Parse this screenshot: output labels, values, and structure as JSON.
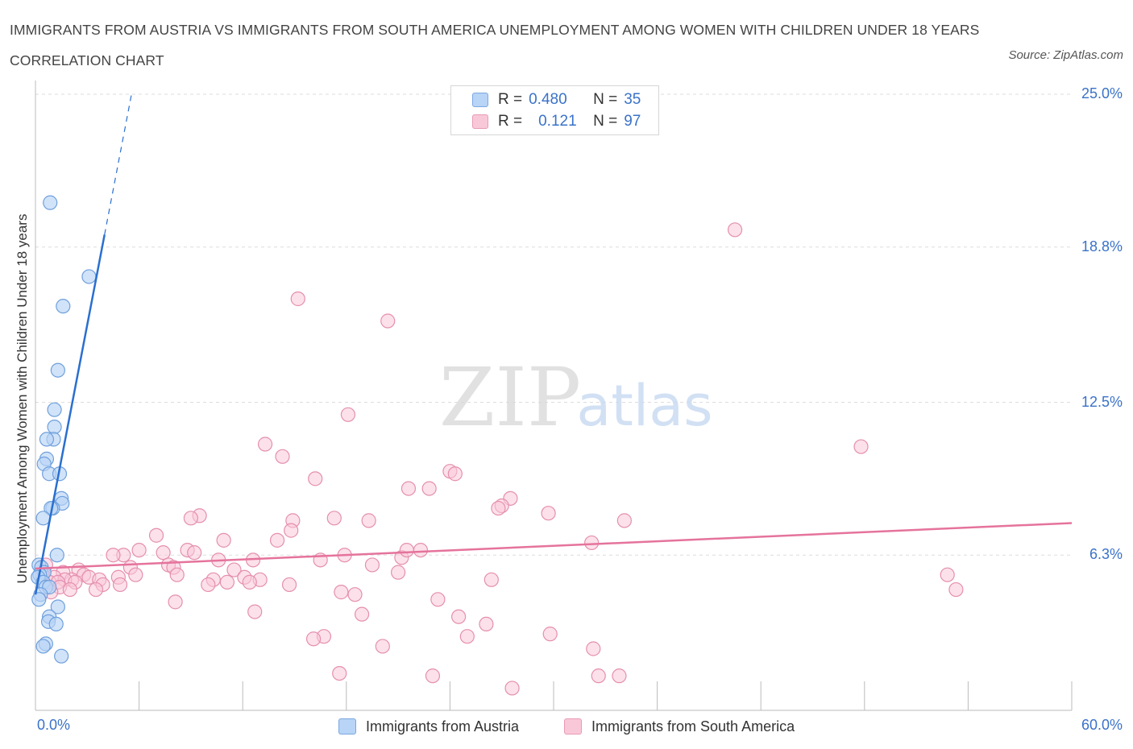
{
  "title": "IMMIGRANTS FROM AUSTRIA VS IMMIGRANTS FROM SOUTH AMERICA UNEMPLOYMENT AMONG WOMEN WITH CHILDREN UNDER 18 YEARS CORRELATION CHART",
  "source": "Source: ZipAtlas.com",
  "watermark": {
    "zip": "ZIP",
    "atlas": "atlas"
  },
  "legend": {
    "austria": {
      "r_label": "R =",
      "r_value": "0.480",
      "n_label": "N =",
      "n_value": "35"
    },
    "south_america": {
      "r_label": "R =",
      "r_value": "0.121",
      "n_label": "N =",
      "n_value": "97"
    }
  },
  "bottom_legend": {
    "austria": "Immigrants from Austria",
    "south_america": "Immigrants from South America"
  },
  "colors": {
    "blue_fill": "#b8d4f6",
    "blue_stroke": "#6fa0dc",
    "blue_line": "#2a6fd0",
    "pink_fill": "#f9c8d8",
    "pink_stroke": "#e58fae",
    "pink_line": "#e5739c",
    "tick_text": "#3a72c8",
    "grid": "#dddddd"
  },
  "chart_data": {
    "type": "scatter",
    "title": "IMMIGRANTS FROM AUSTRIA VS IMMIGRANTS FROM SOUTH AMERICA UNEMPLOYMENT AMONG WOMEN WITH CHILDREN UNDER 18 YEARS CORRELATION CHART",
    "xlabel": "",
    "ylabel": "Unemployment Among Women with Children Under 18 years",
    "xlim": [
      0,
      60
    ],
    "ylim": [
      0,
      25.0
    ],
    "x_tick_labels": [
      "0.0%",
      "60.0%"
    ],
    "y_ticks": [
      6.3,
      12.5,
      18.8,
      25.0
    ],
    "y_tick_labels": [
      "6.3%",
      "12.5%",
      "18.8%",
      "25.0%"
    ],
    "grid": true,
    "legend_position": "top-center",
    "series": [
      {
        "name": "Immigrants from Austria",
        "R": 0.48,
        "N": 35,
        "trend": {
          "x0": 0.0,
          "y0": 4.7,
          "x1": 4.0,
          "y1": 19.3,
          "dash_to_y": 25.0
        },
        "points": [
          [
            0.85,
            20.6
          ],
          [
            3.1,
            17.6
          ],
          [
            1.6,
            16.4
          ],
          [
            1.3,
            13.8
          ],
          [
            1.1,
            12.2
          ],
          [
            1.1,
            11.5
          ],
          [
            1.05,
            11.0
          ],
          [
            0.65,
            11.0
          ],
          [
            0.65,
            10.2
          ],
          [
            0.5,
            10.0
          ],
          [
            0.8,
            9.6
          ],
          [
            1.4,
            9.6
          ],
          [
            1.5,
            8.6
          ],
          [
            1.55,
            8.4
          ],
          [
            1.0,
            8.2
          ],
          [
            0.9,
            8.2
          ],
          [
            0.45,
            7.8
          ],
          [
            1.25,
            6.3
          ],
          [
            0.2,
            5.9
          ],
          [
            0.35,
            5.8
          ],
          [
            0.5,
            5.6
          ],
          [
            0.25,
            5.5
          ],
          [
            0.15,
            5.4
          ],
          [
            0.45,
            5.2
          ],
          [
            0.6,
            5.0
          ],
          [
            0.8,
            5.0
          ],
          [
            0.3,
            4.7
          ],
          [
            0.2,
            4.5
          ],
          [
            1.3,
            4.2
          ],
          [
            0.8,
            3.8
          ],
          [
            0.75,
            3.6
          ],
          [
            1.2,
            3.5
          ],
          [
            0.6,
            2.7
          ],
          [
            0.45,
            2.6
          ],
          [
            1.5,
            2.2
          ]
        ]
      },
      {
        "name": "Immigrants from South America",
        "R": 0.121,
        "N": 97,
        "trend": {
          "x0": 0.0,
          "y0": 5.75,
          "x1": 60.0,
          "y1": 7.6
        },
        "points": [
          [
            40.5,
            19.5
          ],
          [
            15.2,
            16.7
          ],
          [
            20.4,
            15.8
          ],
          [
            18.1,
            12.0
          ],
          [
            47.8,
            10.7
          ],
          [
            13.3,
            10.8
          ],
          [
            14.3,
            10.3
          ],
          [
            16.2,
            9.4
          ],
          [
            24.0,
            9.7
          ],
          [
            24.3,
            9.6
          ],
          [
            21.6,
            9.0
          ],
          [
            22.8,
            9.0
          ],
          [
            27.5,
            8.6
          ],
          [
            27.0,
            8.3
          ],
          [
            26.8,
            8.2
          ],
          [
            29.7,
            8.0
          ],
          [
            9.5,
            7.9
          ],
          [
            9.0,
            7.8
          ],
          [
            17.3,
            7.8
          ],
          [
            19.3,
            7.7
          ],
          [
            34.1,
            7.7
          ],
          [
            14.9,
            7.7
          ],
          [
            14.8,
            7.3
          ],
          [
            7.0,
            7.1
          ],
          [
            14.0,
            6.9
          ],
          [
            10.9,
            6.9
          ],
          [
            32.2,
            6.8
          ],
          [
            6.0,
            6.5
          ],
          [
            8.8,
            6.5
          ],
          [
            7.4,
            6.4
          ],
          [
            9.2,
            6.4
          ],
          [
            5.1,
            6.3
          ],
          [
            4.5,
            6.3
          ],
          [
            17.9,
            6.3
          ],
          [
            10.6,
            6.1
          ],
          [
            16.5,
            6.1
          ],
          [
            12.6,
            6.1
          ],
          [
            21.2,
            6.2
          ],
          [
            21.5,
            6.5
          ],
          [
            22.3,
            6.5
          ],
          [
            7.7,
            5.9
          ],
          [
            8.0,
            5.8
          ],
          [
            5.5,
            5.8
          ],
          [
            19.5,
            5.9
          ],
          [
            11.5,
            5.7
          ],
          [
            2.5,
            5.7
          ],
          [
            1.6,
            5.6
          ],
          [
            2.8,
            5.5
          ],
          [
            8.2,
            5.5
          ],
          [
            5.8,
            5.5
          ],
          [
            3.1,
            5.4
          ],
          [
            12.1,
            5.4
          ],
          [
            4.8,
            5.4
          ],
          [
            13.0,
            5.3
          ],
          [
            10.3,
            5.3
          ],
          [
            3.7,
            5.3
          ],
          [
            11.1,
            5.2
          ],
          [
            21.0,
            5.6
          ],
          [
            1.1,
            5.4
          ],
          [
            2.1,
            5.3
          ],
          [
            1.7,
            5.3
          ],
          [
            0.8,
            5.2
          ],
          [
            1.3,
            5.2
          ],
          [
            2.3,
            5.2
          ],
          [
            3.9,
            5.1
          ],
          [
            4.9,
            5.1
          ],
          [
            10.0,
            5.1
          ],
          [
            12.4,
            5.2
          ],
          [
            14.7,
            5.1
          ],
          [
            1.4,
            5.0
          ],
          [
            3.5,
            4.9
          ],
          [
            2.0,
            4.9
          ],
          [
            0.9,
            4.8
          ],
          [
            17.7,
            4.8
          ],
          [
            18.5,
            4.7
          ],
          [
            26.4,
            5.3
          ],
          [
            52.8,
            5.5
          ],
          [
            53.3,
            4.9
          ],
          [
            8.1,
            4.4
          ],
          [
            23.3,
            4.5
          ],
          [
            12.7,
            4.0
          ],
          [
            18.9,
            3.9
          ],
          [
            24.5,
            3.8
          ],
          [
            26.1,
            3.5
          ],
          [
            20.1,
            2.6
          ],
          [
            29.8,
            3.1
          ],
          [
            25.0,
            3.0
          ],
          [
            16.7,
            3.0
          ],
          [
            16.1,
            2.9
          ],
          [
            32.3,
            2.5
          ],
          [
            17.6,
            1.5
          ],
          [
            23.0,
            1.4
          ],
          [
            32.6,
            1.4
          ],
          [
            33.8,
            1.4
          ],
          [
            27.6,
            0.9
          ],
          [
            0.4,
            5.5
          ],
          [
            0.6,
            5.9
          ]
        ]
      }
    ]
  }
}
